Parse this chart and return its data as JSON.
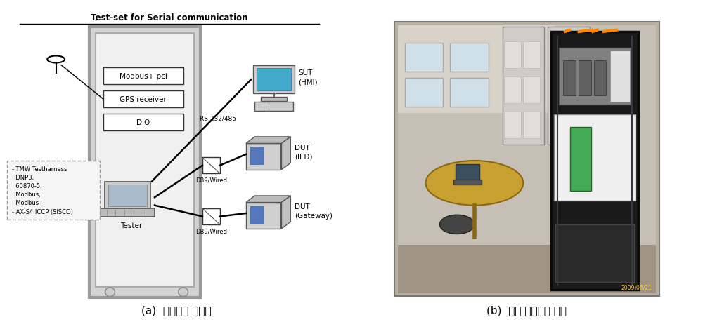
{
  "title_left": "Test-set for Serial communication",
  "caption_left": "(a)  시험장치 구성도",
  "caption_right": "(b)  실제 시험장치 사진",
  "bg_color": "#ffffff",
  "label_modbus": "Modbus+ pci",
  "label_gps": "GPS receiver",
  "label_dio": "DIO",
  "label_tester": "Tester",
  "label_rs232": "RS 232/485",
  "label_db9_1": "DB9/Wired",
  "label_db9_2": "DB9/Wired",
  "label_sut": "SUT\n(HMI)",
  "label_ied": "DUT\n(IED)",
  "label_gw": "DUT\n(Gateway)",
  "sw_text": "- TMW Testharness\n  DNP3,\n  60870-5,\n  Modbus,\n  Modbus+\n- AX-S4 ICCP (SISCO)",
  "timestamp": "2009/06/21"
}
